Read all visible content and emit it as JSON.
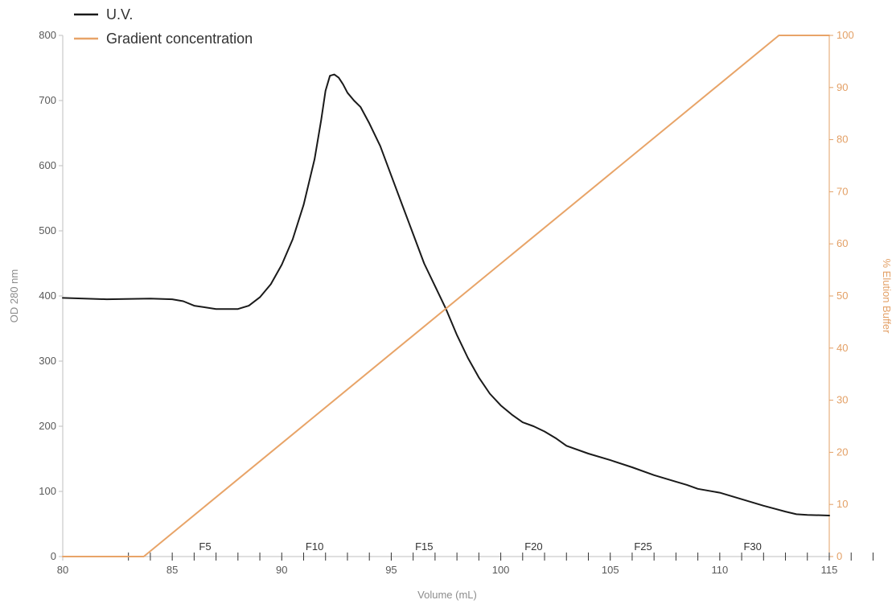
{
  "chart_data": {
    "type": "line",
    "title": "",
    "xlabel": "Volume (mL)",
    "ylabel": "OD 280 nm",
    "y2label": "% Elution Buffer",
    "xlim": [
      80,
      115
    ],
    "ylim": [
      0,
      800
    ],
    "y2lim": [
      0,
      100
    ],
    "x_ticks": [
      "80",
      "85",
      "90",
      "95",
      "100",
      "105",
      "110",
      "115"
    ],
    "y_ticks": [
      "0",
      "100",
      "200",
      "300",
      "400",
      "500",
      "600",
      "700",
      "800"
    ],
    "y2_ticks": [
      "0",
      "10",
      "20",
      "30",
      "40",
      "50",
      "60",
      "70",
      "80",
      "90",
      "100"
    ],
    "grid": false,
    "legend": "top-left",
    "colors": {
      "uv": "#1a1a1a",
      "gradient": "#e8a468",
      "axis": "#bfbfbf",
      "right_axis": "#e3a066"
    },
    "series": [
      {
        "name": "U.V.",
        "axis": "left",
        "x": [
          80,
          82,
          84,
          85,
          85.5,
          86,
          87,
          88,
          88.5,
          89,
          89.5,
          90,
          90.5,
          91,
          91.5,
          91.8,
          92,
          92.2,
          92.4,
          92.6,
          92.8,
          93,
          93.3,
          93.6,
          94,
          94.5,
          95,
          95.5,
          96,
          96.5,
          97,
          97.5,
          98,
          98.5,
          99,
          99.5,
          100,
          100.5,
          101,
          101.5,
          102,
          102.5,
          103,
          104,
          105,
          106,
          107,
          108,
          108.5,
          109,
          110,
          111,
          112,
          113,
          113.5,
          114,
          115
        ],
        "y": [
          397,
          395,
          396,
          395,
          392,
          385,
          380,
          380,
          385,
          398,
          418,
          448,
          487,
          540,
          610,
          670,
          715,
          738,
          740,
          735,
          725,
          712,
          700,
          690,
          665,
          630,
          585,
          540,
          495,
          450,
          415,
          380,
          340,
          305,
          275,
          250,
          232,
          218,
          206,
          200,
          192,
          182,
          170,
          158,
          148,
          137,
          125,
          115,
          110,
          104,
          98,
          88,
          78,
          69,
          65,
          64,
          63
        ]
      },
      {
        "name": "Gradient concentration",
        "axis": "right",
        "x": [
          80,
          83.7,
          112.7,
          115
        ],
        "y": [
          0,
          0,
          100,
          100
        ]
      }
    ],
    "fractions": {
      "count": 35,
      "start_x": 83,
      "step": 1,
      "labels": [
        {
          "text": "F5",
          "x": 87
        },
        {
          "text": "F10",
          "x": 92
        },
        {
          "text": "F15",
          "x": 97
        },
        {
          "text": "F20",
          "x": 102
        },
        {
          "text": "F25",
          "x": 107
        },
        {
          "text": "F30",
          "x": 112
        }
      ]
    }
  }
}
